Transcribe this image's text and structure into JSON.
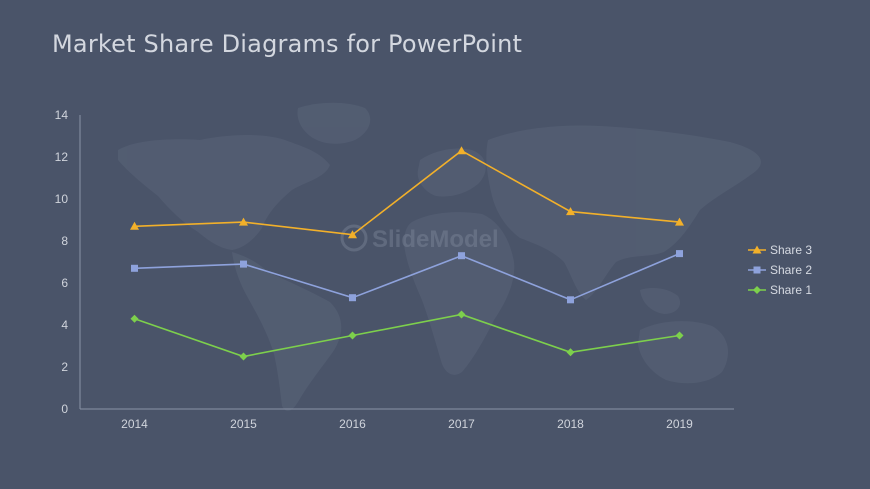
{
  "slide": {
    "title": "Market Share Diagrams for PowerPoint"
  },
  "chart_data": {
    "type": "line",
    "title": "",
    "xlabel": "",
    "ylabel": "",
    "categories": [
      "2014",
      "2015",
      "2016",
      "2017",
      "2018",
      "2019"
    ],
    "ylim": [
      0,
      14
    ],
    "yticks": [
      "0",
      "2",
      "4",
      "6",
      "8",
      "10",
      "12",
      "14"
    ],
    "grid": false,
    "legend_position": "right",
    "series": [
      {
        "name": "Share 3",
        "values": [
          8.7,
          8.9,
          8.3,
          12.3,
          9.4,
          8.9
        ],
        "color": "#f2b02a",
        "marker": "triangle"
      },
      {
        "name": "Share 2",
        "values": [
          6.7,
          6.9,
          5.3,
          7.3,
          5.2,
          7.4
        ],
        "color": "#8ea2dc",
        "marker": "square"
      },
      {
        "name": "Share 1",
        "values": [
          4.3,
          2.5,
          3.5,
          4.5,
          2.7,
          3.5
        ],
        "color": "#7dd04c",
        "marker": "diamond"
      }
    ]
  },
  "background": {
    "color": "#4a5469",
    "watermark_icon": "world-map-icon",
    "watermark_text": "SlideModel"
  }
}
